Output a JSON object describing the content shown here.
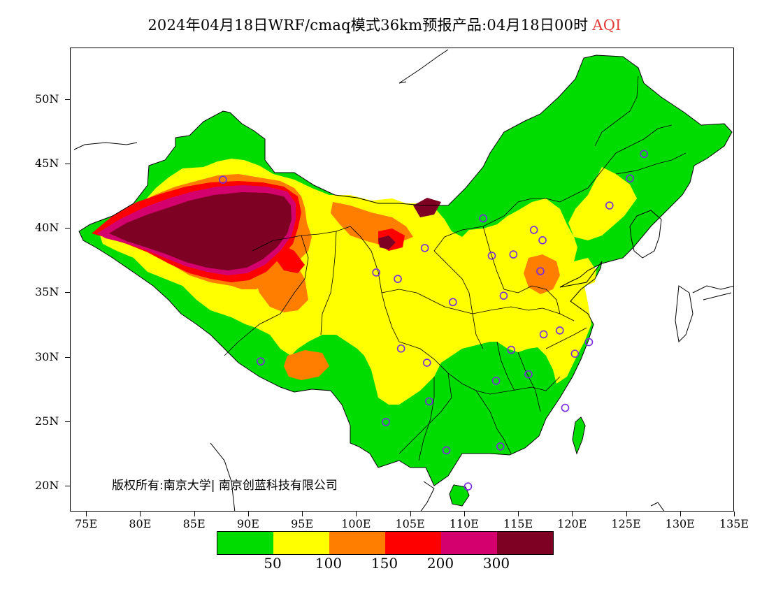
{
  "title": {
    "main": "2024年04月18日WRF/cmaq模式36km预报产品:04月18日00时",
    "suffix": "AQI"
  },
  "copyright": "版权所有:南京大学| 南京创蓝科技有限公司",
  "axes": {
    "y_labels": [
      {
        "text": "50N",
        "lat": 50
      },
      {
        "text": "45N",
        "lat": 45
      },
      {
        "text": "40N",
        "lat": 40
      },
      {
        "text": "35N",
        "lat": 35
      },
      {
        "text": "30N",
        "lat": 30
      },
      {
        "text": "25N",
        "lat": 25
      },
      {
        "text": "20N",
        "lat": 20
      }
    ],
    "x_labels": [
      {
        "text": "75E",
        "lon": 75
      },
      {
        "text": "80E",
        "lon": 80
      },
      {
        "text": "85E",
        "lon": 85
      },
      {
        "text": "90E",
        "lon": 90
      },
      {
        "text": "95E",
        "lon": 95
      },
      {
        "text": "100E",
        "lon": 100
      },
      {
        "text": "105E",
        "lon": 105
      },
      {
        "text": "110E",
        "lon": 110
      },
      {
        "text": "115E",
        "lon": 115
      },
      {
        "text": "120E",
        "lon": 120
      },
      {
        "text": "125E",
        "lon": 125
      },
      {
        "text": "130E",
        "lon": 130
      },
      {
        "text": "135E",
        "lon": 135
      }
    ],
    "lon_range": [
      73.5,
      135
    ],
    "lat_range": [
      18,
      54
    ]
  },
  "legend": {
    "colors": [
      "#00dc00",
      "#ffff00",
      "#ff7e00",
      "#ff0000",
      "#d4006e",
      "#7e0023"
    ],
    "labels": [
      "50",
      "100",
      "150",
      "200",
      "300"
    ]
  },
  "stations": [
    {
      "lon": 87.6,
      "lat": 43.8
    },
    {
      "lon": 91.1,
      "lat": 29.7
    },
    {
      "lon": 101.8,
      "lat": 36.6
    },
    {
      "lon": 103.8,
      "lat": 36.1
    },
    {
      "lon": 106.3,
      "lat": 38.5
    },
    {
      "lon": 111.7,
      "lat": 40.8
    },
    {
      "lon": 108.9,
      "lat": 34.3
    },
    {
      "lon": 104.1,
      "lat": 30.7
    },
    {
      "lon": 106.5,
      "lat": 29.6
    },
    {
      "lon": 106.7,
      "lat": 26.6
    },
    {
      "lon": 102.7,
      "lat": 25.0
    },
    {
      "lon": 108.3,
      "lat": 22.8
    },
    {
      "lon": 110.3,
      "lat": 20.0
    },
    {
      "lon": 113.3,
      "lat": 23.1
    },
    {
      "lon": 112.9,
      "lat": 28.2
    },
    {
      "lon": 114.3,
      "lat": 30.6
    },
    {
      "lon": 115.9,
      "lat": 28.7
    },
    {
      "lon": 119.3,
      "lat": 26.1
    },
    {
      "lon": 120.2,
      "lat": 30.3
    },
    {
      "lon": 121.5,
      "lat": 31.2
    },
    {
      "lon": 118.8,
      "lat": 32.1
    },
    {
      "lon": 117.3,
      "lat": 31.8
    },
    {
      "lon": 113.6,
      "lat": 34.8
    },
    {
      "lon": 117.0,
      "lat": 36.7
    },
    {
      "lon": 114.5,
      "lat": 38.0
    },
    {
      "lon": 112.5,
      "lat": 37.9
    },
    {
      "lon": 116.4,
      "lat": 39.9
    },
    {
      "lon": 117.2,
      "lat": 39.1
    },
    {
      "lon": 123.4,
      "lat": 41.8
    },
    {
      "lon": 125.3,
      "lat": 43.9
    },
    {
      "lon": 126.6,
      "lat": 45.8
    }
  ]
}
